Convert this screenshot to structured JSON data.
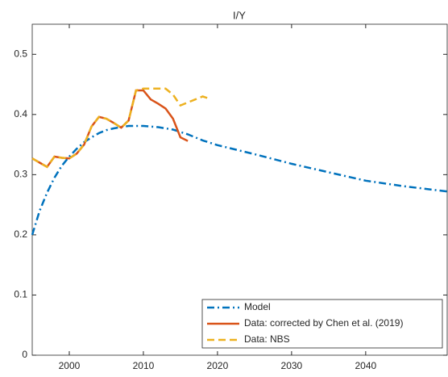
{
  "chart_data": {
    "type": "line",
    "title": "I/Y",
    "xlim": [
      1995,
      2051
    ],
    "xticks": [
      2000,
      2010,
      2020,
      2030,
      2040
    ],
    "ylim": [
      0,
      0.55
    ],
    "yticks": [
      0,
      0.1,
      0.2,
      0.3,
      0.4,
      0.5
    ],
    "grid": false,
    "legend": "southeast",
    "series": [
      {
        "name": "Model",
        "color": "#0072BD",
        "style": "dashdot",
        "x": [
          1995,
          1996,
          1997,
          1998,
          1999,
          2000,
          2001,
          2002,
          2003,
          2004,
          2005,
          2006,
          2007,
          2008,
          2009,
          2010,
          2012,
          2014,
          2016,
          2018,
          2020,
          2025,
          2030,
          2035,
          2040,
          2045,
          2051
        ],
        "values": [
          0.2,
          0.24,
          0.27,
          0.295,
          0.315,
          0.33,
          0.343,
          0.354,
          0.362,
          0.369,
          0.374,
          0.377,
          0.379,
          0.381,
          0.381,
          0.381,
          0.379,
          0.375,
          0.367,
          0.357,
          0.349,
          0.334,
          0.318,
          0.304,
          0.29,
          0.281,
          0.272
        ]
      },
      {
        "name": "Data: corrected by Chen et al. (2019)",
        "color": "#D95319",
        "style": "solid",
        "x": [
          1995,
          1996,
          1997,
          1998,
          1999,
          2000,
          2001,
          2002,
          2003,
          2004,
          2005,
          2006,
          2007,
          2008,
          2009,
          2010,
          2011,
          2012,
          2013,
          2014,
          2015,
          2016
        ],
        "values": [
          0.327,
          0.32,
          0.313,
          0.33,
          0.328,
          0.327,
          0.335,
          0.35,
          0.38,
          0.396,
          0.393,
          0.386,
          0.378,
          0.39,
          0.44,
          0.44,
          0.425,
          0.418,
          0.41,
          0.393,
          0.362,
          0.356
        ]
      },
      {
        "name": "Data: NBS",
        "color": "#EDB120",
        "style": "dashed",
        "x": [
          1995,
          1996,
          1997,
          1998,
          1999,
          2000,
          2001,
          2002,
          2003,
          2004,
          2005,
          2006,
          2007,
          2008,
          2009,
          2010,
          2011,
          2012,
          2013,
          2014,
          2015,
          2016,
          2017,
          2018,
          2019
        ],
        "values": [
          0.327,
          0.32,
          0.313,
          0.33,
          0.328,
          0.327,
          0.335,
          0.35,
          0.38,
          0.396,
          0.393,
          0.386,
          0.378,
          0.39,
          0.44,
          0.443,
          0.443,
          0.443,
          0.443,
          0.433,
          0.415,
          0.42,
          0.425,
          0.43,
          0.426
        ]
      }
    ]
  }
}
